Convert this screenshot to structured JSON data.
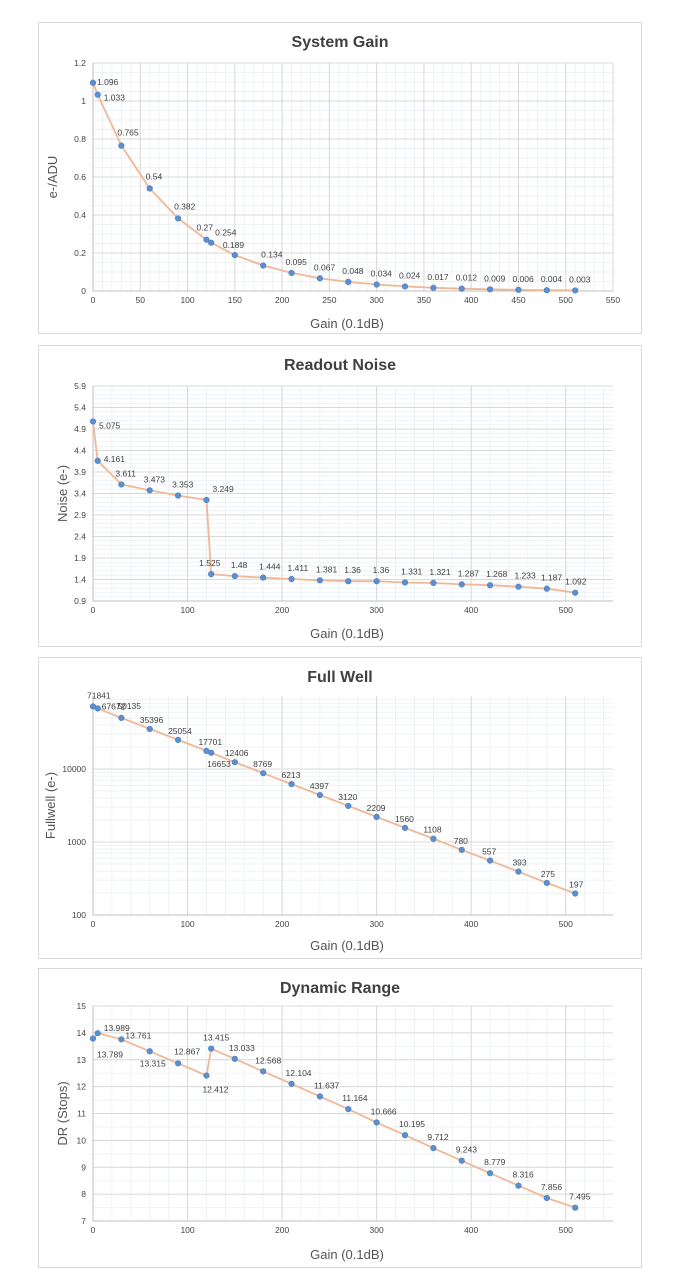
{
  "chart_data": [
    {
      "type": "line",
      "title": "System Gain",
      "xlabel": "Gain (0.1dB)",
      "ylabel": "e-/ADU",
      "xlim": [
        0,
        550
      ],
      "ylim": [
        0,
        1.2
      ],
      "xticks": [
        "0",
        "50",
        "100",
        "150",
        "200",
        "250",
        "300",
        "350",
        "400",
        "450",
        "500",
        "550"
      ],
      "yticks": [
        "0",
        "0.2",
        "0.4",
        "0.6",
        "0.8",
        "1",
        "1.2"
      ],
      "grid": true,
      "minor_grid": true,
      "x": [
        0,
        5,
        30,
        60,
        90,
        120,
        125,
        150,
        180,
        210,
        240,
        270,
        300,
        330,
        360,
        390,
        420,
        450,
        480,
        510
      ],
      "y": [
        1.096,
        1.033,
        0.765,
        0.54,
        0.382,
        0.27,
        0.254,
        0.189,
        0.134,
        0.095,
        0.067,
        0.048,
        0.034,
        0.024,
        0.017,
        0.012,
        0.009,
        0.006,
        0.004,
        0.003
      ],
      "labels": [
        "1.096",
        "1.033",
        "0.765",
        "0.54",
        "0.382",
        "0.27",
        "0.254",
        "0.189",
        "0.134",
        "0.095",
        "0.067",
        "0.048",
        "0.034",
        "0.024",
        "0.017",
        "0.012",
        "0.009",
        "0.006",
        "0.004",
        "0.003"
      ]
    },
    {
      "type": "line",
      "title": "Readout Noise",
      "xlabel": "Gain (0.1dB)",
      "ylabel": "Noise (e-)",
      "xlim": [
        0,
        550
      ],
      "ylim": [
        0.9,
        5.9
      ],
      "xticks": [
        "0",
        "100",
        "200",
        "300",
        "400",
        "500"
      ],
      "yticks": [
        "0.9",
        "1.4",
        "1.9",
        "2.4",
        "2.9",
        "3.4",
        "3.9",
        "4.4",
        "4.9",
        "5.4",
        "5.9"
      ],
      "grid": true,
      "minor_grid": true,
      "x": [
        0,
        5,
        30,
        60,
        90,
        120,
        125,
        150,
        180,
        210,
        240,
        270,
        300,
        330,
        360,
        390,
        420,
        450,
        480,
        510
      ],
      "y": [
        5.075,
        4.161,
        3.611,
        3.473,
        3.353,
        3.249,
        1.525,
        1.48,
        1.444,
        1.411,
        1.381,
        1.36,
        1.36,
        1.331,
        1.321,
        1.287,
        1.268,
        1.233,
        1.187,
        1.092
      ],
      "labels": [
        "5.075",
        "4.161",
        "3.611",
        "3.473",
        "3.353",
        "3.249",
        "1.525",
        "1.48",
        "1.444",
        "1.411",
        "1.381",
        "1.36",
        "1.36",
        "1.331",
        "1.321",
        "1.287",
        "1.268",
        "1.233",
        "1.187",
        "1.092"
      ]
    },
    {
      "type": "line",
      "title": "Full Well",
      "xlabel": "Gain (0.1dB)",
      "ylabel": "Fullwell (e-)",
      "xlim": [
        0,
        550
      ],
      "ylim": [
        100,
        100000
      ],
      "log_y": true,
      "xticks": [
        "0",
        "100",
        "200",
        "300",
        "400",
        "500"
      ],
      "yticks": [
        "100",
        "1000",
        "10000"
      ],
      "grid": true,
      "minor_grid": true,
      "x": [
        0,
        5,
        30,
        60,
        90,
        120,
        125,
        150,
        180,
        210,
        240,
        270,
        300,
        330,
        360,
        390,
        420,
        450,
        480,
        510
      ],
      "y": [
        71841,
        67672,
        50135,
        35396,
        25054,
        17701,
        16653,
        12406,
        8769,
        6213,
        4397,
        3120,
        2209,
        1560,
        1108,
        780,
        557,
        393,
        275,
        197
      ],
      "labels": [
        "71841",
        "67672",
        "50135",
        "35396",
        "25054",
        "17701",
        "16653",
        "12406",
        "8769",
        "6213",
        "4397",
        "3120",
        "2209",
        "1560",
        "1108",
        "780",
        "557",
        "393",
        "275",
        "197"
      ]
    },
    {
      "type": "line",
      "title": "Dynamic Range",
      "xlabel": "Gain (0.1dB)",
      "ylabel": "DR (Stops)",
      "xlim": [
        0,
        550
      ],
      "ylim": [
        7,
        15
      ],
      "xticks": [
        "0",
        "100",
        "200",
        "300",
        "400",
        "500"
      ],
      "yticks": [
        "7",
        "8",
        "9",
        "10",
        "11",
        "12",
        "13",
        "14",
        "15"
      ],
      "grid": true,
      "minor_grid": true,
      "x": [
        0,
        5,
        30,
        60,
        90,
        120,
        125,
        150,
        180,
        210,
        240,
        270,
        300,
        330,
        360,
        390,
        420,
        450,
        480,
        510
      ],
      "y": [
        13.789,
        13.989,
        13.761,
        13.315,
        12.867,
        12.412,
        13.415,
        13.033,
        12.568,
        12.104,
        11.637,
        11.164,
        10.666,
        10.195,
        9.712,
        9.243,
        8.779,
        8.316,
        7.856,
        7.495
      ],
      "labels": [
        "13.789",
        "13.989",
        "13.761",
        "13.315",
        "12.867",
        "12.412",
        "13.415",
        "13.033",
        "12.568",
        "12.104",
        "11.637",
        "11.164",
        "10.666",
        "10.195",
        "9.712",
        "9.243",
        "8.779",
        "8.316",
        "7.856",
        "7.495"
      ]
    }
  ],
  "colors": {
    "line": "#f0b896",
    "marker": "#5b8fd0",
    "grid_major": "#d9d9d9",
    "grid_minor": "#eef2f8",
    "title": "#404040"
  }
}
